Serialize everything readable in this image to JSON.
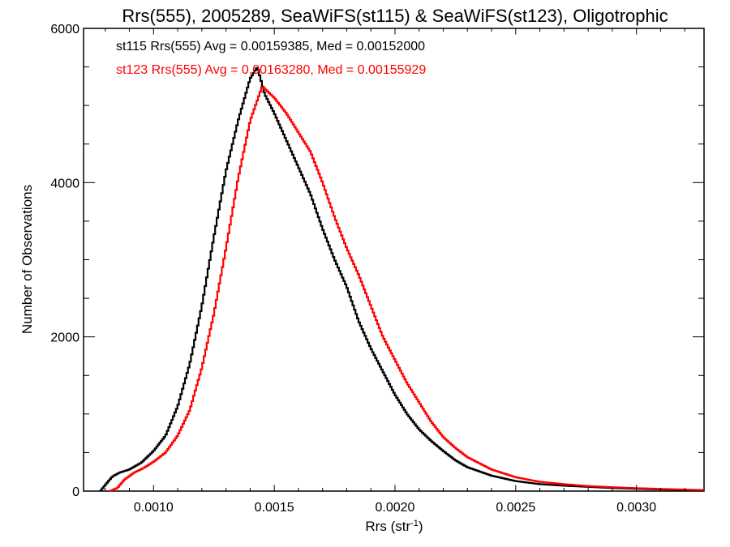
{
  "chart_data": {
    "type": "line",
    "title": "Rrs(555), 2005289, SeaWiFS(st115) & SeaWiFS(st123), Oligotrophic",
    "xlabel": "Rrs (str",
    "xlabel_sup": "-1",
    "xlabel_close": ")",
    "ylabel": "Number of Observations",
    "xlim": [
      0.00071,
      0.00328
    ],
    "ylim": [
      0,
      6000
    ],
    "x_ticks": [
      {
        "value": 0.001,
        "label": "0.0010"
      },
      {
        "value": 0.0015,
        "label": "0.0015"
      },
      {
        "value": 0.002,
        "label": "0.0020"
      },
      {
        "value": 0.0025,
        "label": "0.0025"
      },
      {
        "value": 0.003,
        "label": "0.0030"
      }
    ],
    "y_ticks": [
      {
        "value": 0,
        "label": "0"
      },
      {
        "value": 2000,
        "label": "2000"
      },
      {
        "value": 4000,
        "label": "4000"
      },
      {
        "value": 6000,
        "label": "6000"
      }
    ],
    "grid": false,
    "legend_position": "top-left",
    "annotations": [
      {
        "text": "st115 Rrs(555) Avg = 0.00159385, Med = 0.00152000",
        "color": "#000000"
      },
      {
        "text": "st123 Rrs(555) Avg = 0.00163280, Med = 0.00155929",
        "color": "#ff0000"
      }
    ],
    "series": [
      {
        "color": "#000000",
        "points": [
          [
            0.00078,
            0
          ],
          [
            0.0008,
            80
          ],
          [
            0.00083,
            190
          ],
          [
            0.00086,
            240
          ],
          [
            0.0009,
            280
          ],
          [
            0.00095,
            370
          ],
          [
            0.001,
            520
          ],
          [
            0.00105,
            720
          ],
          [
            0.0011,
            1100
          ],
          [
            0.00115,
            1650
          ],
          [
            0.0012,
            2400
          ],
          [
            0.00125,
            3300
          ],
          [
            0.0013,
            4150
          ],
          [
            0.00135,
            4800
          ],
          [
            0.0014,
            5350
          ],
          [
            0.00143,
            5500
          ],
          [
            0.00146,
            5150
          ],
          [
            0.0015,
            4900
          ],
          [
            0.00155,
            4550
          ],
          [
            0.0016,
            4200
          ],
          [
            0.00165,
            3850
          ],
          [
            0.0017,
            3400
          ],
          [
            0.00175,
            3000
          ],
          [
            0.0018,
            2650
          ],
          [
            0.00185,
            2200
          ],
          [
            0.0019,
            1850
          ],
          [
            0.00195,
            1550
          ],
          [
            0.002,
            1250
          ],
          [
            0.00205,
            1000
          ],
          [
            0.0021,
            800
          ],
          [
            0.00215,
            650
          ],
          [
            0.0022,
            520
          ],
          [
            0.00225,
            400
          ],
          [
            0.0023,
            310
          ],
          [
            0.0024,
            200
          ],
          [
            0.0025,
            130
          ],
          [
            0.0026,
            90
          ],
          [
            0.0027,
            70
          ],
          [
            0.0028,
            55
          ],
          [
            0.0029,
            40
          ],
          [
            0.003,
            30
          ],
          [
            0.0031,
            22
          ],
          [
            0.0032,
            15
          ],
          [
            0.00328,
            10
          ]
        ]
      },
      {
        "color": "#ff0000",
        "points": [
          [
            0.00082,
            0
          ],
          [
            0.00085,
            40
          ],
          [
            0.00088,
            150
          ],
          [
            0.00092,
            240
          ],
          [
            0.00096,
            300
          ],
          [
            0.001,
            380
          ],
          [
            0.00105,
            500
          ],
          [
            0.0011,
            720
          ],
          [
            0.00115,
            1050
          ],
          [
            0.0012,
            1600
          ],
          [
            0.00125,
            2300
          ],
          [
            0.0013,
            3150
          ],
          [
            0.00135,
            4050
          ],
          [
            0.0014,
            4800
          ],
          [
            0.00145,
            5250
          ],
          [
            0.0015,
            5100
          ],
          [
            0.00155,
            4900
          ],
          [
            0.0016,
            4650
          ],
          [
            0.00165,
            4400
          ],
          [
            0.0017,
            4000
          ],
          [
            0.00175,
            3550
          ],
          [
            0.0018,
            3150
          ],
          [
            0.00185,
            2800
          ],
          [
            0.0019,
            2400
          ],
          [
            0.00195,
            2000
          ],
          [
            0.002,
            1700
          ],
          [
            0.00205,
            1400
          ],
          [
            0.0021,
            1150
          ],
          [
            0.00215,
            900
          ],
          [
            0.0022,
            700
          ],
          [
            0.00225,
            560
          ],
          [
            0.0023,
            440
          ],
          [
            0.0024,
            280
          ],
          [
            0.0025,
            180
          ],
          [
            0.0026,
            120
          ],
          [
            0.0027,
            90
          ],
          [
            0.0028,
            65
          ],
          [
            0.0029,
            50
          ],
          [
            0.003,
            38
          ],
          [
            0.0031,
            28
          ],
          [
            0.0032,
            20
          ],
          [
            0.00328,
            12
          ]
        ]
      }
    ]
  }
}
